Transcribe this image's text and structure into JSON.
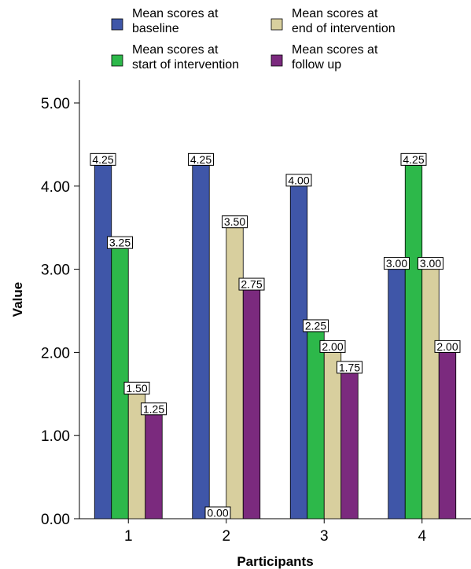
{
  "chart_data": {
    "type": "bar",
    "title": "",
    "xlabel": "Participants",
    "ylabel": "Value",
    "categories": [
      "1",
      "2",
      "3",
      "4"
    ],
    "ylim": [
      0,
      5
    ],
    "yticks": [
      "0.00",
      "1.00",
      "2.00",
      "3.00",
      "4.00",
      "5.00"
    ],
    "grid": false,
    "legend_position": "top",
    "series": [
      {
        "name": "Mean scores at baseline",
        "legend_lines": [
          "Mean scores at",
          "baseline"
        ],
        "color": "#3f56a8",
        "values": [
          4.25,
          4.25,
          4.0,
          3.0
        ],
        "labels": [
          "4.25",
          "4.25",
          "4.00",
          "3.00"
        ]
      },
      {
        "name": "Mean scores at start of intervention",
        "legend_lines": [
          "Mean scores at",
          "start of intervention"
        ],
        "color": "#2db84a",
        "values": [
          3.25,
          0.0,
          2.25,
          4.25
        ],
        "labels": [
          "3.25",
          "0.00",
          "2.25",
          "4.25"
        ]
      },
      {
        "name": "Mean scores at end of intervention",
        "legend_lines": [
          "Mean scores at",
          "end of intervention"
        ],
        "color": "#d8cf9e",
        "values": [
          1.5,
          3.5,
          2.0,
          3.0
        ],
        "labels": [
          "1.50",
          "3.50",
          "2.00",
          "3.00"
        ]
      },
      {
        "name": "Mean scores at follow up",
        "legend_lines": [
          "Mean scores at",
          "follow up"
        ],
        "color": "#7b2a7e",
        "values": [
          1.25,
          2.75,
          1.75,
          2.0
        ],
        "labels": [
          "1.25",
          "2.75",
          "1.75",
          "2.00"
        ]
      }
    ]
  }
}
